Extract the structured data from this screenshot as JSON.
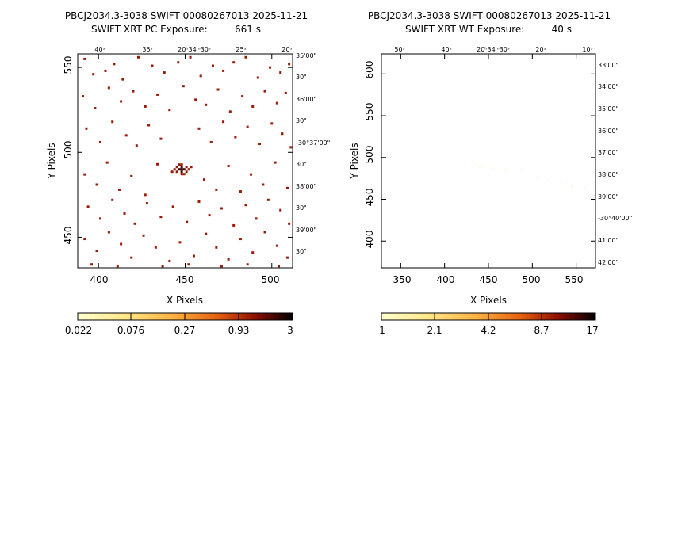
{
  "panels": [
    {
      "id": "pc",
      "title_line1": "PBCJ2034.3-3038 SWIFT 00080267013 2025-11-21",
      "title_line2": "SWIFT XRT PC Exposure:         661 s",
      "xlabel": "X Pixels",
      "ylabel": "Y Pixels",
      "x_ticks": [
        "400",
        "450",
        "500"
      ],
      "y_ticks": [
        "450",
        "500",
        "550"
      ],
      "ra_ticks": [
        "40ˢ",
        "35ˢ",
        "20ʰ34ᵐ30ˢ",
        "25ˢ",
        "20ˢ"
      ],
      "dec_ticks": [
        "35'00\"",
        "30\"",
        "36'00\"",
        "30\"",
        "-30°37'00\"",
        "30\"",
        "38'00\"",
        "30\"",
        "39'00\"",
        "30\""
      ],
      "colorbar_labels": [
        "0.022",
        "0.076",
        "0.27",
        "0.93",
        "3"
      ]
    },
    {
      "id": "wt",
      "title_line1": "PBCJ2034.3-3038 SWIFT 00080267013 2025-11-21",
      "title_line2": "SWIFT XRT WT Exposure:         40 s",
      "xlabel": "X Pixels",
      "ylabel": "Y Pixels",
      "x_ticks": [
        "350",
        "400",
        "450",
        "500",
        "550"
      ],
      "y_ticks": [
        "400",
        "450",
        "500",
        "550",
        "600"
      ],
      "ra_ticks": [
        "50ˢ",
        "40ˢ",
        "20ʰ34ᵐ30ˢ",
        "20ˢ",
        "10ˢ"
      ],
      "dec_ticks": [
        "33'00\"",
        "34'00\"",
        "35'00\"",
        "36'00\"",
        "37'00\"",
        "38'00\"",
        "39'00\"",
        "-30°40'00\"",
        "41'00\"",
        "42'00\""
      ],
      "colorbar_labels": [
        "1",
        "2.1",
        "4.2",
        "8.7",
        "17"
      ]
    }
  ],
  "chart_data": [
    {
      "type": "heatmap",
      "title": "PBCJ2034.3-3038 SWIFT 00080267013 2025-11-21 / SWIFT XRT PC Exposure: 661 s",
      "xlabel": "X Pixels",
      "ylabel": "Y Pixels",
      "xlim": [
        388,
        512
      ],
      "ylim": [
        432,
        558
      ],
      "colorbar": {
        "range": [
          0.022,
          3
        ],
        "scale": "log",
        "labels": [
          "0.022",
          "0.076",
          "0.27",
          "0.93",
          "3"
        ]
      },
      "colors": {
        "low": "#ffffc0",
        "mid": "#f08020",
        "high": "#000000",
        "event": "#9a1a05",
        "bright": "#3a0000"
      },
      "source": {
        "x": 448,
        "y": 490,
        "label": "bright point source (cluster of events)"
      },
      "events": [
        [
          392,
          555
        ],
        [
          397,
          546
        ],
        [
          404,
          548
        ],
        [
          409,
          552
        ],
        [
          414,
          543
        ],
        [
          423,
          556
        ],
        [
          431,
          551
        ],
        [
          438,
          547
        ],
        [
          446,
          553
        ],
        [
          453,
          556
        ],
        [
          459,
          545
        ],
        [
          466,
          551
        ],
        [
          472,
          548
        ],
        [
          478,
          553
        ],
        [
          485,
          556
        ],
        [
          492,
          544
        ],
        [
          499,
          550
        ],
        [
          505,
          547
        ],
        [
          510,
          552
        ],
        [
          391,
          533
        ],
        [
          398,
          526
        ],
        [
          406,
          538
        ],
        [
          413,
          530
        ],
        [
          420,
          536
        ],
        [
          427,
          527
        ],
        [
          434,
          534
        ],
        [
          441,
          525
        ],
        [
          449,
          539
        ],
        [
          456,
          531
        ],
        [
          462,
          528
        ],
        [
          469,
          537
        ],
        [
          476,
          524
        ],
        [
          483,
          533
        ],
        [
          489,
          527
        ],
        [
          496,
          536
        ],
        [
          503,
          529
        ],
        [
          508,
          535
        ],
        [
          393,
          514
        ],
        [
          401,
          506
        ],
        [
          408,
          518
        ],
        [
          416,
          510
        ],
        [
          422,
          504
        ],
        [
          429,
          516
        ],
        [
          436,
          508
        ],
        [
          458,
          514
        ],
        [
          465,
          506
        ],
        [
          472,
          518
        ],
        [
          479,
          509
        ],
        [
          486,
          515
        ],
        [
          493,
          505
        ],
        [
          500,
          517
        ],
        [
          506,
          511
        ],
        [
          511,
          503
        ],
        [
          392,
          487
        ],
        [
          399,
          481
        ],
        [
          405,
          494
        ],
        [
          412,
          478
        ],
        [
          419,
          486
        ],
        [
          427,
          475
        ],
        [
          434,
          493
        ],
        [
          461,
          484
        ],
        [
          468,
          478
        ],
        [
          475,
          492
        ],
        [
          482,
          477
        ],
        [
          488,
          487
        ],
        [
          495,
          481
        ],
        [
          502,
          494
        ],
        [
          509,
          479
        ],
        [
          394,
          468
        ],
        [
          401,
          461
        ],
        [
          408,
          472
        ],
        [
          415,
          464
        ],
        [
          421,
          458
        ],
        [
          428,
          470
        ],
        [
          436,
          462
        ],
        [
          443,
          468
        ],
        [
          451,
          459
        ],
        [
          458,
          471
        ],
        [
          464,
          463
        ],
        [
          471,
          467
        ],
        [
          478,
          457
        ],
        [
          485,
          469
        ],
        [
          491,
          461
        ],
        [
          498,
          472
        ],
        [
          505,
          466
        ],
        [
          510,
          458
        ],
        [
          392,
          449
        ],
        [
          399,
          442
        ],
        [
          406,
          453
        ],
        [
          413,
          446
        ],
        [
          419,
          438
        ],
        [
          426,
          451
        ],
        [
          433,
          444
        ],
        [
          441,
          436
        ],
        [
          447,
          447
        ],
        [
          455,
          439
        ],
        [
          462,
          452
        ],
        [
          468,
          444
        ],
        [
          475,
          437
        ],
        [
          482,
          449
        ],
        [
          489,
          441
        ],
        [
          496,
          453
        ],
        [
          503,
          445
        ],
        [
          509,
          438
        ],
        [
          396,
          434
        ],
        [
          411,
          433
        ],
        [
          437,
          433
        ],
        [
          452,
          434
        ],
        [
          471,
          433
        ],
        [
          486,
          434
        ],
        [
          504,
          433
        ]
      ]
    },
    {
      "type": "heatmap",
      "title": "PBCJ2034.3-3038 SWIFT 00080267013 2025-11-21 / SWIFT XRT WT Exposure: 40 s",
      "xlabel": "X Pixels",
      "ylabel": "Y Pixels",
      "xlim": [
        328,
        572
      ],
      "ylim": [
        368,
        624
      ],
      "colorbar": {
        "range": [
          1,
          17
        ],
        "scale": "log",
        "labels": [
          "1",
          "2.1",
          "4.2",
          "8.7",
          "17"
        ]
      },
      "colors": {
        "low": "#ffffc0",
        "mid": "#f08020",
        "high": "#000000",
        "event": "#fff2cc",
        "hot": "#f7d9a0"
      },
      "events": [
        [
          440,
          488
        ],
        [
          455,
          487
        ],
        [
          470,
          486
        ],
        [
          487,
          485
        ],
        [
          505,
          476
        ],
        [
          518,
          472
        ],
        [
          532,
          470
        ],
        [
          545,
          466
        ],
        [
          560,
          463
        ]
      ]
    }
  ]
}
